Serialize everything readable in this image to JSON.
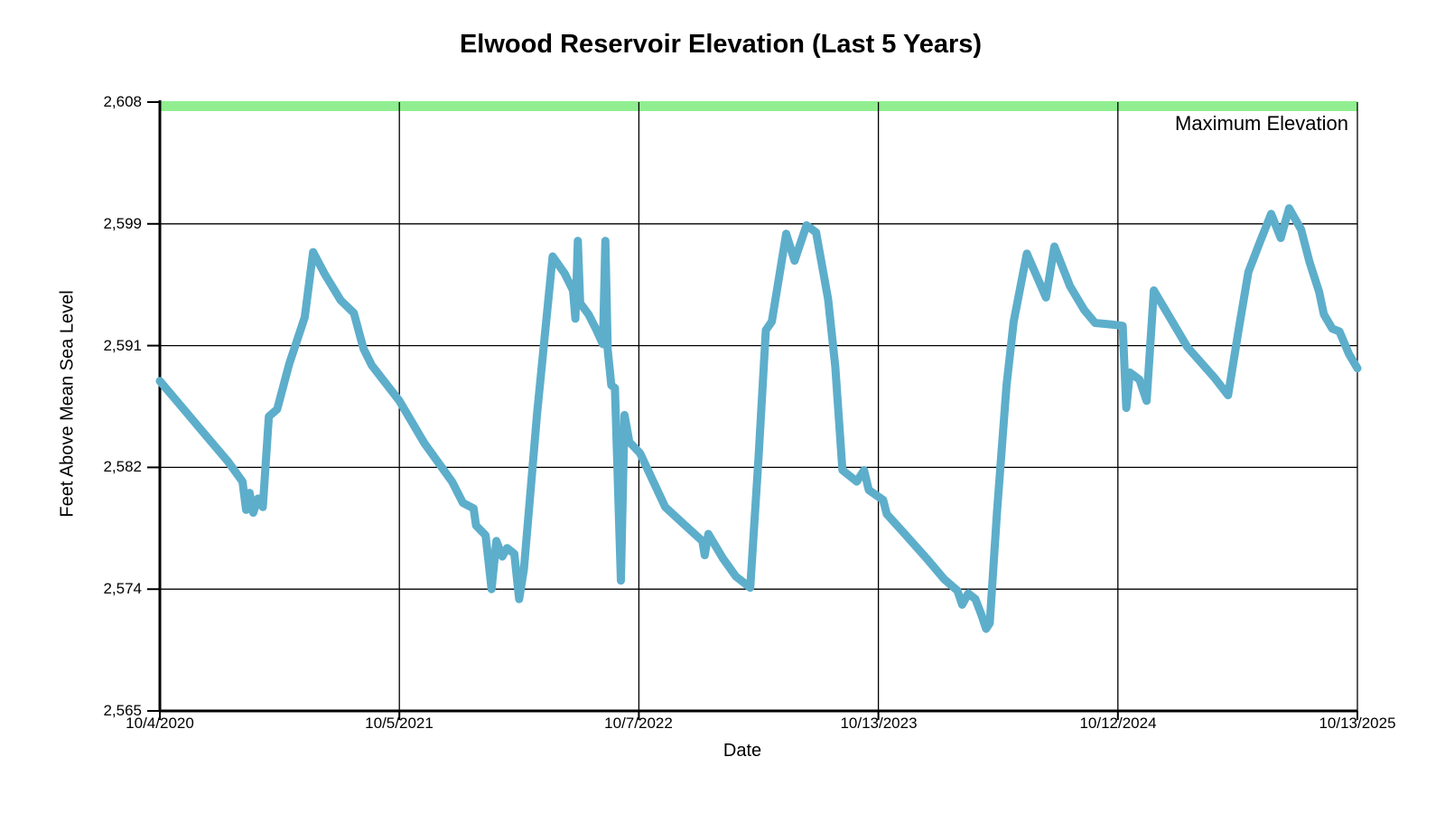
{
  "title": "Elwood Reservoir Elevation (Last 5 Years)",
  "chart_data": {
    "type": "line",
    "title": "Elwood Reservoir Elevation (Last 5 Years)",
    "xlabel": "Date",
    "ylabel": "Feet Above Mean Sea Level",
    "ylim": [
      2565,
      2608
    ],
    "grid": true,
    "x_tick_labels": [
      "10/4/2020",
      "10/5/2021",
      "10/7/2022",
      "10/13/2023",
      "10/12/2024",
      "10/13/2025"
    ],
    "y_tick_labels": [
      "2,608",
      "2,599",
      "2,591",
      "2,582",
      "2,574",
      "2,565"
    ],
    "y_grid_values": [
      2565,
      2573.6,
      2582.2,
      2590.8,
      2599.4,
      2608
    ],
    "axis_color": "#000000",
    "max_elevation": {
      "label": "Maximum Elevation",
      "value": 2608,
      "band_color": "#90EE90",
      "text_color": "#1B7E1B"
    },
    "series": [
      {
        "name": "Reservoir Elevation",
        "color": "#5DAECB",
        "stroke_width": 9,
        "points": [
          [
            0.0,
            2588.3
          ],
          [
            0.017,
            2586.6
          ],
          [
            0.04,
            2584.3
          ],
          [
            0.057,
            2582.6
          ],
          [
            0.069,
            2581.2
          ],
          [
            0.072,
            2579.2
          ],
          [
            0.075,
            2580.4
          ],
          [
            0.078,
            2579.0
          ],
          [
            0.082,
            2580.0
          ],
          [
            0.086,
            2579.4
          ],
          [
            0.091,
            2585.8
          ],
          [
            0.098,
            2586.3
          ],
          [
            0.108,
            2589.5
          ],
          [
            0.121,
            2592.8
          ],
          [
            0.128,
            2597.4
          ],
          [
            0.138,
            2595.8
          ],
          [
            0.151,
            2594.0
          ],
          [
            0.162,
            2593.1
          ],
          [
            0.17,
            2590.6
          ],
          [
            0.177,
            2589.4
          ],
          [
            0.2,
            2586.9
          ],
          [
            0.221,
            2583.9
          ],
          [
            0.244,
            2581.2
          ],
          [
            0.253,
            2579.7
          ],
          [
            0.262,
            2579.3
          ],
          [
            0.264,
            2578.1
          ],
          [
            0.272,
            2577.4
          ],
          [
            0.277,
            2573.6
          ],
          [
            0.281,
            2577.0
          ],
          [
            0.286,
            2575.9
          ],
          [
            0.29,
            2576.5
          ],
          [
            0.296,
            2576.1
          ],
          [
            0.3,
            2572.9
          ],
          [
            0.304,
            2575.0
          ],
          [
            0.315,
            2586.0
          ],
          [
            0.328,
            2597.1
          ],
          [
            0.338,
            2595.9
          ],
          [
            0.345,
            2594.7
          ],
          [
            0.347,
            2592.7
          ],
          [
            0.349,
            2598.2
          ],
          [
            0.351,
            2593.8
          ],
          [
            0.358,
            2593.0
          ],
          [
            0.364,
            2592.0
          ],
          [
            0.37,
            2590.9
          ],
          [
            0.372,
            2598.2
          ],
          [
            0.374,
            2590.5
          ],
          [
            0.377,
            2588.0
          ],
          [
            0.38,
            2587.8
          ],
          [
            0.385,
            2574.2
          ],
          [
            0.388,
            2585.9
          ],
          [
            0.392,
            2584.0
          ],
          [
            0.401,
            2583.2
          ],
          [
            0.422,
            2579.4
          ],
          [
            0.44,
            2578.0
          ],
          [
            0.453,
            2577.0
          ],
          [
            0.455,
            2576.0
          ],
          [
            0.458,
            2577.5
          ],
          [
            0.47,
            2575.8
          ],
          [
            0.481,
            2574.5
          ],
          [
            0.493,
            2573.7
          ],
          [
            0.5,
            2583.0
          ],
          [
            0.506,
            2591.9
          ],
          [
            0.511,
            2592.5
          ],
          [
            0.523,
            2598.7
          ],
          [
            0.53,
            2596.8
          ],
          [
            0.54,
            2599.3
          ],
          [
            0.548,
            2598.8
          ],
          [
            0.558,
            2594.1
          ],
          [
            0.564,
            2589.3
          ],
          [
            0.57,
            2582.0
          ],
          [
            0.582,
            2581.2
          ],
          [
            0.588,
            2582.0
          ],
          [
            0.592,
            2580.6
          ],
          [
            0.604,
            2579.9
          ],
          [
            0.607,
            2578.9
          ],
          [
            0.621,
            2577.6
          ],
          [
            0.64,
            2575.8
          ],
          [
            0.655,
            2574.3
          ],
          [
            0.666,
            2573.5
          ],
          [
            0.67,
            2572.5
          ],
          [
            0.675,
            2573.3
          ],
          [
            0.681,
            2572.9
          ],
          [
            0.686,
            2571.8
          ],
          [
            0.69,
            2570.8
          ],
          [
            0.693,
            2571.2
          ],
          [
            0.699,
            2579.0
          ],
          [
            0.707,
            2588.0
          ],
          [
            0.713,
            2592.5
          ],
          [
            0.724,
            2597.3
          ],
          [
            0.74,
            2594.2
          ],
          [
            0.747,
            2597.8
          ],
          [
            0.76,
            2595.0
          ],
          [
            0.772,
            2593.3
          ],
          [
            0.781,
            2592.4
          ],
          [
            0.794,
            2592.3
          ],
          [
            0.804,
            2592.2
          ],
          [
            0.807,
            2586.4
          ],
          [
            0.81,
            2588.9
          ],
          [
            0.818,
            2588.4
          ],
          [
            0.824,
            2586.9
          ],
          [
            0.83,
            2594.7
          ],
          [
            0.858,
            2590.7
          ],
          [
            0.881,
            2588.5
          ],
          [
            0.892,
            2587.3
          ],
          [
            0.901,
            2592.0
          ],
          [
            0.909,
            2596.0
          ],
          [
            0.919,
            2598.2
          ],
          [
            0.928,
            2600.1
          ],
          [
            0.936,
            2598.4
          ],
          [
            0.943,
            2600.5
          ],
          [
            0.953,
            2599.0
          ],
          [
            0.96,
            2596.7
          ],
          [
            0.968,
            2594.6
          ],
          [
            0.972,
            2593.0
          ],
          [
            0.979,
            2592.0
          ],
          [
            0.985,
            2591.8
          ],
          [
            0.993,
            2590.2
          ],
          [
            1.0,
            2589.2
          ]
        ]
      }
    ]
  }
}
